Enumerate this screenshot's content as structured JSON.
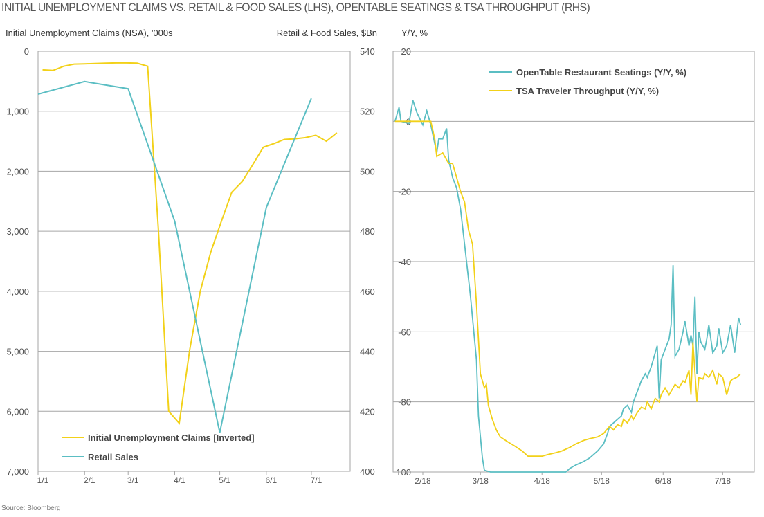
{
  "title": "INITIAL UNEMPLOYMENT CLAIMS VS. RETAIL & FOOD SALES (LHS), OPENTABLE SEATINGS & TSA THROUGHPUT (RHS)",
  "source": "Source: Bloomberg",
  "colors": {
    "yellow": "#F2D119",
    "teal": "#5BBEC3",
    "grid": "#A6A6A6",
    "text": "#555555"
  },
  "chart_data": [
    {
      "type": "line",
      "ylabel": "Initial Unemployment Claims (NSA), '000s",
      "y2label": "Retail & Food Sales, $Bn",
      "ylim": [
        0,
        7000
      ],
      "y_inverted": true,
      "y2lim": [
        400,
        540
      ],
      "yticks": [
        "0",
        "1,000",
        "2,000",
        "3,000",
        "4,000",
        "5,000",
        "6,000",
        "7,000"
      ],
      "y2ticks": [
        "540",
        "520",
        "500",
        "480",
        "460",
        "440",
        "420",
        "400"
      ],
      "xticks": [
        "1/1",
        "2/1",
        "3/1",
        "4/1",
        "5/1",
        "6/1",
        "7/1"
      ],
      "grid": true,
      "legend": "bottom-left",
      "series": [
        {
          "name": "Initial Unemployment Claims [Inverted]",
          "axis": "left",
          "color": "#F2D119",
          "x": [
            "1/4",
            "1/11",
            "1/18",
            "1/25",
            "2/1",
            "2/8",
            "2/15",
            "2/22",
            "2/29",
            "3/7",
            "3/14",
            "3/21",
            "3/28",
            "4/4",
            "4/11",
            "4/18",
            "4/25",
            "5/2",
            "5/9",
            "5/16",
            "5/23",
            "5/30",
            "6/6",
            "6/13",
            "6/20",
            "6/27",
            "7/4",
            "7/11",
            "7/18"
          ],
          "y": [
            310,
            320,
            250,
            215,
            210,
            205,
            200,
            195,
            195,
            200,
            250,
            2920,
            6000,
            6200,
            4970,
            4000,
            3350,
            2840,
            2350,
            2170,
            1890,
            1600,
            1540,
            1470,
            1460,
            1440,
            1400,
            1500,
            1360
          ]
        },
        {
          "name": "Retail Sales",
          "axis": "right",
          "color": "#5BBEC3",
          "x": [
            "1/1",
            "2/1",
            "3/1",
            "4/1",
            "5/1",
            "6/1",
            "7/1"
          ],
          "y": [
            525.7,
            529.9,
            527.5,
            483.3,
            412.9,
            487.9,
            524.3
          ]
        }
      ]
    },
    {
      "type": "line",
      "ylabel": "Y/Y, %",
      "ylim": [
        -100,
        20
      ],
      "yticks": [
        "20",
        "0",
        "-20",
        "-40",
        "-60",
        "-80",
        "-100"
      ],
      "xticks": [
        "2/18",
        "3/18",
        "4/18",
        "5/18",
        "6/18",
        "7/18"
      ],
      "grid": true,
      "legend": "top-center",
      "series": [
        {
          "name": "OpenTable Restaurant Seatings (Y/Y, %)",
          "color": "#5BBEC3",
          "x": [
            "2/4",
            "2/6",
            "2/7",
            "2/11",
            "2/13",
            "2/15",
            "2/18",
            "2/20",
            "2/22",
            "2/25",
            "2/26",
            "2/28",
            "3/1",
            "3/2",
            "3/4",
            "3/6",
            "3/8",
            "3/10",
            "3/13",
            "3/16",
            "3/17",
            "3/19",
            "3/20",
            "3/23",
            "4/30",
            "5/2",
            "5/5",
            "5/9",
            "5/12",
            "5/16",
            "5/19",
            "5/21",
            "5/22",
            "5/24",
            "5/28",
            "5/29",
            "5/31",
            "6/2",
            "6/3",
            "6/5",
            "6/7",
            "6/9",
            "6/10",
            "6/12",
            "6/14",
            "6/15",
            "6/16",
            "6/17",
            "6/19",
            "6/21",
            "6/22",
            "6/23",
            "6/24",
            "6/26",
            "6/28",
            "6/29",
            "7/1",
            "7/2",
            "7/3",
            "7/4",
            "7/5",
            "7/6",
            "7/7",
            "7/9",
            "7/10",
            "7/11",
            "7/13",
            "7/15",
            "7/16",
            "7/18",
            "7/20",
            "7/22",
            "7/24",
            "7/25",
            "7/26",
            "7/27"
          ],
          "y": [
            0,
            4,
            0,
            -0.6,
            6,
            2.5,
            -1,
            3,
            -1,
            -9,
            -5,
            -5,
            -2,
            -11,
            -16,
            -19,
            -25,
            -35,
            -50,
            -68,
            -84,
            -96,
            -99.5,
            -100,
            -100,
            -99,
            -98,
            -97,
            -96,
            -94,
            -92,
            -89,
            -87,
            -86,
            -84,
            -82,
            -81,
            -83,
            -80,
            -77,
            -74,
            -72,
            -73,
            -70,
            -66,
            -64,
            -79,
            -68,
            -65,
            -62,
            -58,
            -41,
            -67,
            -65,
            -60,
            -57,
            -64,
            -61,
            -64,
            -50,
            -72,
            -60,
            -63,
            -65,
            -62,
            -58,
            -66,
            -64,
            -59,
            -66,
            -64,
            -58,
            -66,
            -61,
            -56,
            -58
          ]
        },
        {
          "name": "TSA Traveler Throughput (Y/Y, %)",
          "color": "#F2D119",
          "x": [
            "2/4",
            "2/18",
            "2/22",
            "2/24",
            "2/25",
            "2/28",
            "3/2",
            "3/4",
            "3/6",
            "3/8",
            "3/10",
            "3/12",
            "3/14",
            "3/16",
            "3/18",
            "3/20",
            "3/21",
            "3/22",
            "3/24",
            "3/26",
            "3/28",
            "4/1",
            "4/4",
            "4/8",
            "4/11",
            "4/15",
            "4/18",
            "4/21",
            "4/25",
            "4/28",
            "5/2",
            "5/5",
            "5/9",
            "5/12",
            "5/16",
            "5/19",
            "5/22",
            "5/24",
            "5/26",
            "5/28",
            "5/29",
            "5/31",
            "6/2",
            "6/3",
            "6/5",
            "6/7",
            "6/9",
            "6/10",
            "6/12",
            "6/14",
            "6/16",
            "6/17",
            "6/19",
            "6/21",
            "6/23",
            "6/24",
            "6/26",
            "6/28",
            "6/29",
            "7/1",
            "7/2",
            "7/3",
            "7/5",
            "7/6",
            "7/8",
            "7/9",
            "7/11",
            "7/13",
            "7/15",
            "7/16",
            "7/18",
            "7/20",
            "7/22",
            "7/23",
            "7/25",
            "7/27"
          ],
          "y": [
            0,
            0,
            0,
            -5,
            -10,
            -9,
            -12,
            -12,
            -16,
            -20,
            -23,
            -31,
            -35,
            -52,
            -72,
            -76,
            -75,
            -81,
            -85,
            -88,
            -90,
            -91.5,
            -92.5,
            -94,
            -95.5,
            -95.5,
            -95.5,
            -95,
            -94.5,
            -94,
            -93,
            -92,
            -91,
            -90.5,
            -90,
            -89,
            -87,
            -88,
            -86.5,
            -87,
            -85,
            -86,
            -84,
            -85,
            -83,
            -81.5,
            -82,
            -80,
            -82,
            -79,
            -80,
            -78,
            -76,
            -78,
            -76,
            -75,
            -76,
            -74,
            -74.5,
            -71,
            -78,
            -63,
            -80,
            -73,
            -73.5,
            -72,
            -73,
            -71,
            -75,
            -72,
            -73,
            -78,
            -74,
            -73.5,
            -73,
            -72
          ]
        }
      ]
    }
  ]
}
